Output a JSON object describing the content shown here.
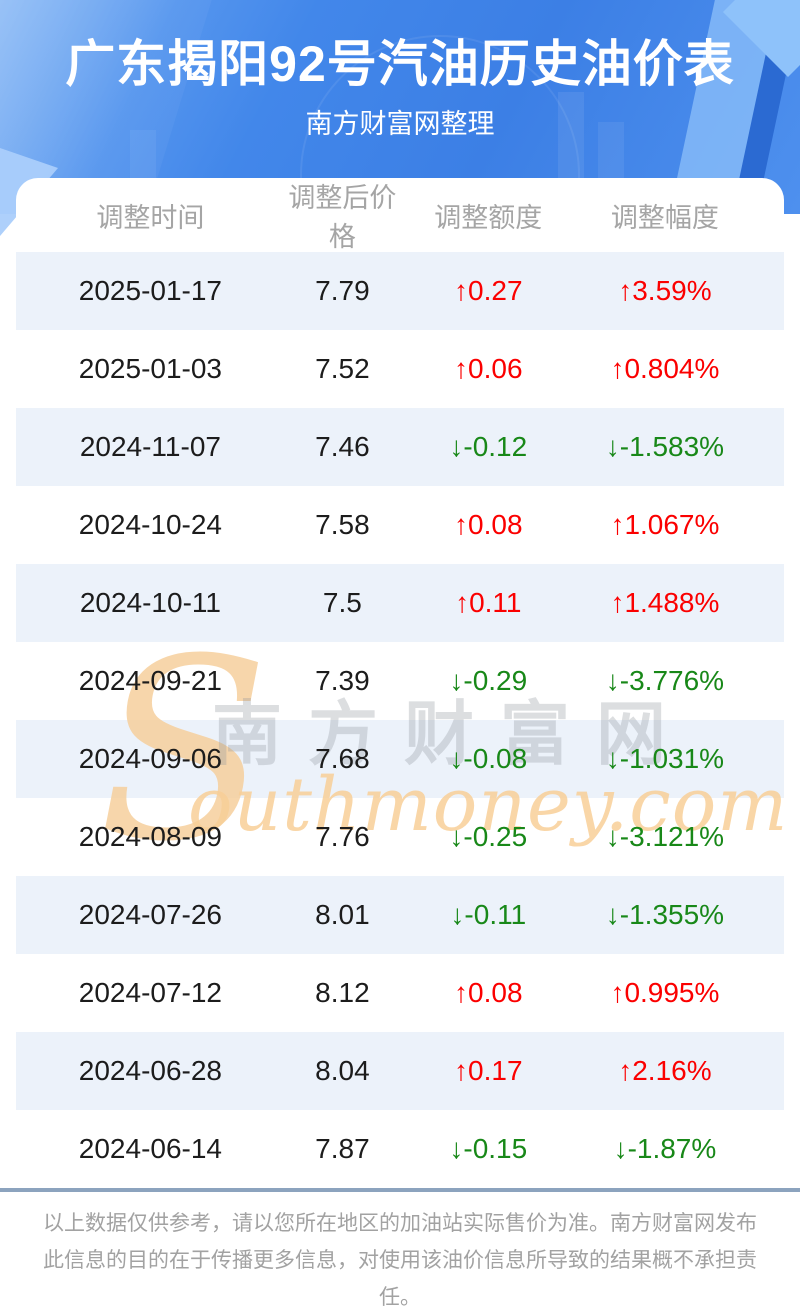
{
  "banner": {
    "title": "广东揭阳92号汽油历史油价表",
    "subtitle": "南方财富网整理"
  },
  "table": {
    "headers": [
      "调整时间",
      "调整后价格",
      "调整额度",
      "调整幅度"
    ],
    "arrows": {
      "up": "↑",
      "down": "↓"
    },
    "rows": [
      {
        "date": "2025-01-17",
        "price": "7.79",
        "change": "0.27",
        "change_pct": "3.59%",
        "direction": "up"
      },
      {
        "date": "2025-01-03",
        "price": "7.52",
        "change": "0.06",
        "change_pct": "0.804%",
        "direction": "up"
      },
      {
        "date": "2024-11-07",
        "price": "7.46",
        "change": "-0.12",
        "change_pct": "-1.583%",
        "direction": "down"
      },
      {
        "date": "2024-10-24",
        "price": "7.58",
        "change": "0.08",
        "change_pct": "1.067%",
        "direction": "up"
      },
      {
        "date": "2024-10-11",
        "price": "7.5",
        "change": "0.11",
        "change_pct": "1.488%",
        "direction": "up"
      },
      {
        "date": "2024-09-21",
        "price": "7.39",
        "change": "-0.29",
        "change_pct": "-3.776%",
        "direction": "down"
      },
      {
        "date": "2024-09-06",
        "price": "7.68",
        "change": "-0.08",
        "change_pct": "-1.031%",
        "direction": "down"
      },
      {
        "date": "2024-08-09",
        "price": "7.76",
        "change": "-0.25",
        "change_pct": "-3.121%",
        "direction": "down"
      },
      {
        "date": "2024-07-26",
        "price": "8.01",
        "change": "-0.11",
        "change_pct": "-1.355%",
        "direction": "down"
      },
      {
        "date": "2024-07-12",
        "price": "8.12",
        "change": "0.08",
        "change_pct": "0.995%",
        "direction": "up"
      },
      {
        "date": "2024-06-28",
        "price": "8.04",
        "change": "0.17",
        "change_pct": "2.16%",
        "direction": "up"
      },
      {
        "date": "2024-06-14",
        "price": "7.87",
        "change": "-0.15",
        "change_pct": "-1.87%",
        "direction": "down"
      }
    ]
  },
  "watermark": {
    "initial": "S",
    "brand": "南方财富网",
    "latin": "outhmoney.com"
  },
  "footer": {
    "disclaimer": "以上数据仅供参考，请以您所在地区的加油站实际售价为准。南方财富网发布此信息的目的在于传播更多信息，对使用该油价信息所导致的结果概不承担责任。"
  },
  "colors": {
    "up": "#fb0000",
    "down": "#188818",
    "stripe": "#ecf2fa",
    "divider": "#8ca3be"
  }
}
